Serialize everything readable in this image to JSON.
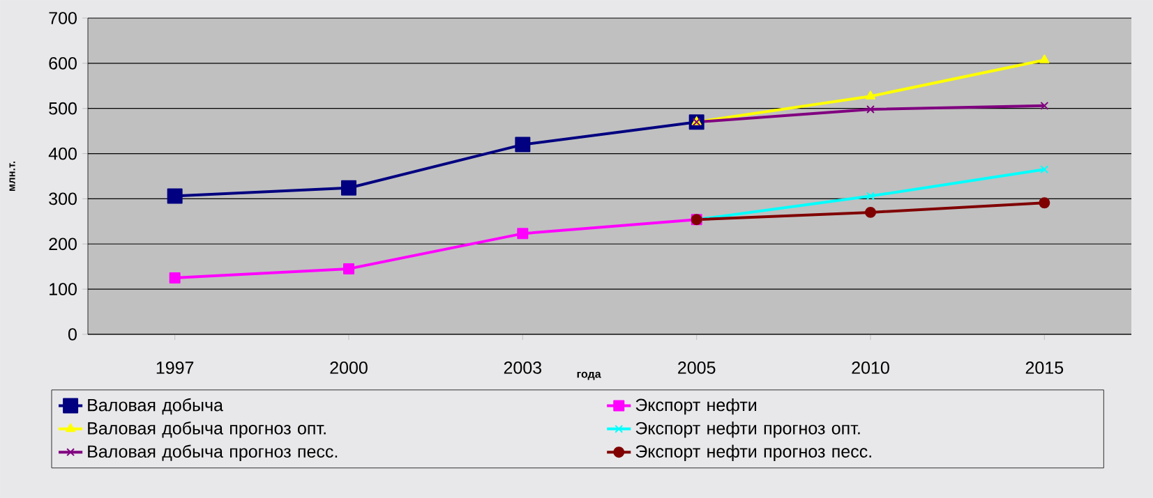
{
  "chart_data": {
    "type": "line",
    "xlabel": "года",
    "ylabel": "млн.т.",
    "categories": [
      "1997",
      "2000",
      "2003",
      "2005",
      "2010",
      "2015"
    ],
    "series": [
      {
        "name": "Валовая добыча",
        "color": "#000080",
        "marker": "square",
        "values": [
          306,
          324,
          420,
          470,
          null,
          null
        ]
      },
      {
        "name": "Экспорт нефти",
        "color": "#ff00ff",
        "marker": "square",
        "values": [
          125,
          145,
          223,
          254,
          null,
          null
        ]
      },
      {
        "name": "Валовая добыча прогноз опт.",
        "color": "#ffff00",
        "marker": "triangle",
        "values": [
          null,
          null,
          null,
          470,
          527,
          607
        ]
      },
      {
        "name": "Экспорт нефти  прогноз опт.",
        "color": "#00ffff",
        "marker": "cross",
        "values": [
          null,
          null,
          null,
          254,
          306,
          365
        ]
      },
      {
        "name": "Валовая добыча  прогноз песс.",
        "color": "#800080",
        "marker": "cross",
        "values": [
          null,
          null,
          null,
          470,
          498,
          506
        ]
      },
      {
        "name": "Экспорт нефти  прогноз песс.",
        "color": "#800000",
        "marker": "circle",
        "values": [
          null,
          null,
          null,
          254,
          270,
          291
        ]
      }
    ],
    "ylim": [
      0,
      700
    ],
    "yticks": [
      0,
      100,
      200,
      300,
      400,
      500,
      600,
      700
    ],
    "grid": "y",
    "legend": "bottom",
    "line_style": "solid"
  }
}
